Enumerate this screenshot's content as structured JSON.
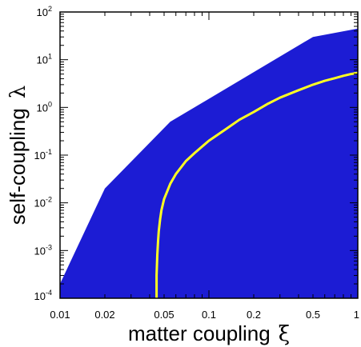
{
  "chart_data": {
    "type": "area",
    "xlabel": "matter coupling",
    "xlabel_symbol": "ξ",
    "ylabel": "self-coupling",
    "ylabel_symbol": "λ",
    "x_scale": "log",
    "y_scale": "log",
    "xlim": [
      0.01,
      1
    ],
    "ylim": [
      0.0001,
      100
    ],
    "x_ticks": [
      {
        "value": 0.01,
        "label": "0.01"
      },
      {
        "value": 0.02,
        "label": "0.02"
      },
      {
        "value": 0.05,
        "label": "0.05"
      },
      {
        "value": 0.1,
        "label": "0.1"
      },
      {
        "value": 0.2,
        "label": "0.2"
      },
      {
        "value": 0.5,
        "label": "0.5"
      },
      {
        "value": 1,
        "label": "1"
      }
    ],
    "y_ticks": [
      {
        "value": 0.0001,
        "base": "10",
        "exp": "-4"
      },
      {
        "value": 0.001,
        "base": "10",
        "exp": "-3"
      },
      {
        "value": 0.01,
        "base": "10",
        "exp": "-2"
      },
      {
        "value": 0.1,
        "base": "10",
        "exp": "-1"
      },
      {
        "value": 1,
        "base": "10",
        "exp": "0"
      },
      {
        "value": 10,
        "base": "10",
        "exp": "1"
      },
      {
        "value": 100,
        "base": "10",
        "exp": "2"
      }
    ],
    "grid": false,
    "colors": {
      "region_fill": "#1c1cd4",
      "curve": "#ffff22",
      "frame": "#000000"
    },
    "series": [
      {
        "kind": "shaded-region",
        "x": [
          0.01,
          0.02,
          0.055,
          0.5,
          1.0
        ],
        "y": [
          0.0002,
          0.02,
          0.5,
          30,
          45
        ]
      },
      {
        "kind": "curve",
        "x": [
          0.0445,
          0.0445,
          0.045,
          0.0455,
          0.046,
          0.047,
          0.048,
          0.05,
          0.055,
          0.06,
          0.07,
          0.08,
          0.1,
          0.13,
          0.16,
          0.2,
          0.25,
          0.3,
          0.4,
          0.5,
          0.6,
          0.7,
          0.8,
          0.9,
          1.0
        ],
        "y": [
          0.0001,
          0.0003,
          0.0008,
          0.0015,
          0.0025,
          0.0045,
          0.007,
          0.012,
          0.025,
          0.04,
          0.075,
          0.11,
          0.2,
          0.35,
          0.55,
          0.8,
          1.2,
          1.6,
          2.3,
          3.0,
          3.6,
          4.1,
          4.6,
          5.0,
          5.3
        ]
      }
    ]
  }
}
